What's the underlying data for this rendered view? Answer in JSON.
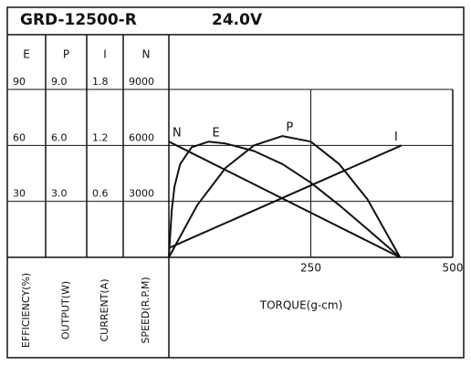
{
  "chart_data": {
    "type": "line",
    "title": "GRD-12500-R",
    "subtitle": "24.0V",
    "x_label": "TORQUE(g-cm)",
    "xlim": [
      0,
      500
    ],
    "xticks": [
      250,
      500
    ],
    "grid": true,
    "color": "#111111",
    "y_axes": [
      {
        "name": "E",
        "label": "EFFICIENCY(%)",
        "ylim": [
          0,
          90
        ],
        "yticks": [
          30,
          60,
          90
        ]
      },
      {
        "name": "P",
        "label": "OUTPUT(W)",
        "ylim": [
          0,
          9
        ],
        "yticks": [
          {
            "value": 3,
            "label": "3.0"
          },
          {
            "value": 6,
            "label": "6.0"
          },
          {
            "value": 9,
            "label": "9.0"
          }
        ]
      },
      {
        "name": "I",
        "label": "CURRENT(A)",
        "ylim": [
          0,
          1.8
        ],
        "yticks": [
          0.6,
          1.2,
          1.8
        ]
      },
      {
        "name": "N",
        "label": "SPEED(R.P.M)",
        "ylim": [
          0,
          9000
        ],
        "yticks": [
          3000,
          6000,
          9000
        ]
      }
    ],
    "series": [
      {
        "name": "N",
        "axis": "N",
        "color": "#111111",
        "x": [
          0,
          407
        ],
        "values": [
          6200,
          0
        ]
      },
      {
        "name": "E",
        "axis": "E",
        "color": "#111111",
        "x": [
          0,
          5,
          10,
          20,
          40,
          70,
          100,
          150,
          200,
          250,
          300,
          350,
          407
        ],
        "values": [
          0,
          25,
          38,
          50,
          59,
          62,
          61,
          57,
          50,
          40,
          28,
          15,
          0
        ]
      },
      {
        "name": "P",
        "axis": "P",
        "color": "#111111",
        "x": [
          0,
          50,
          100,
          150,
          200,
          250,
          300,
          350,
          407
        ],
        "values": [
          0,
          2.8,
          4.8,
          6.0,
          6.5,
          6.2,
          5.0,
          3.1,
          0
        ]
      },
      {
        "name": "I",
        "axis": "I",
        "color": "#111111",
        "x": [
          0,
          410
        ],
        "values": [
          0.1,
          1.2
        ]
      }
    ]
  }
}
